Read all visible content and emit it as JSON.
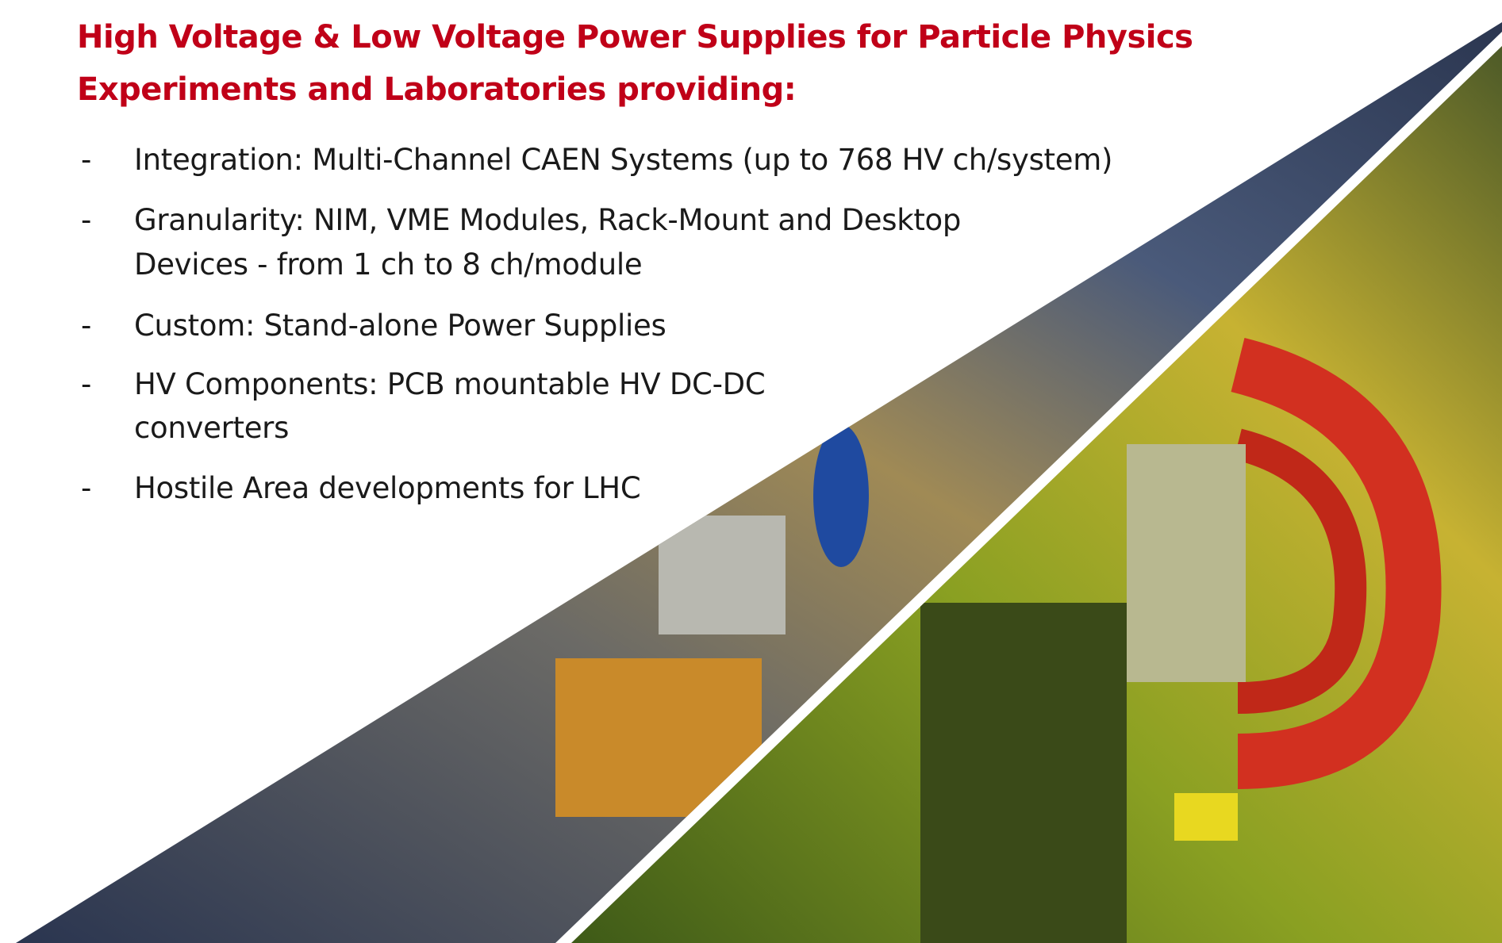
{
  "title": [
    "High Voltage & Low Voltage Power Supplies for Particle Physics",
    "Experiments and Laboratories providing:"
  ],
  "bullets": [
    {
      "marker": "-",
      "lines": [
        "Integration: Multi-Channel CAEN Systems (up to 768 HV ch/system)"
      ]
    },
    {
      "marker": "-",
      "lines": [
        "Granularity: NIM, VME Modules, Rack-Mount and Desktop",
        "Devices - from 1 ch to 8 ch/module"
      ]
    },
    {
      "marker": "-",
      "lines": [
        "Custom: Stand-alone Power Supplies"
      ]
    },
    {
      "marker": "-",
      "lines": [
        "HV Components: PCB mountable HV DC-DC",
        "converters"
      ]
    },
    {
      "marker": "-",
      "lines": [
        "Hostile Area developments for LHC"
      ]
    }
  ]
}
